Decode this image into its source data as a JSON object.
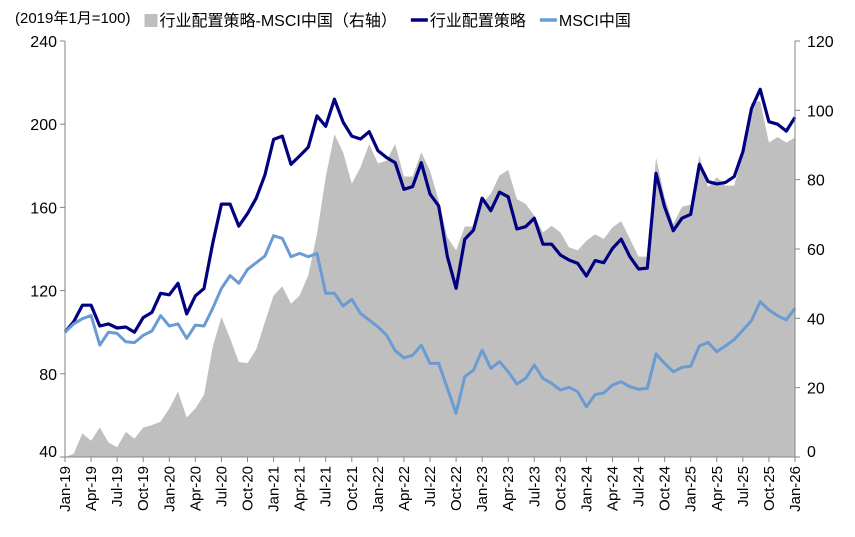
{
  "chart_data": {
    "type": "line+area",
    "unit_note": "(2019年1月=100)",
    "legend_position": "top",
    "grid": false,
    "legend": [
      {
        "key": "diff",
        "label": "行业配置策略-MSCI中国（右轴）",
        "swatch": "square"
      },
      {
        "key": "strategy",
        "label": "行业配置策略",
        "swatch": "line"
      },
      {
        "key": "msci",
        "label": "MSCI中国",
        "swatch": "line"
      }
    ],
    "colors": {
      "diff": "#bfbfbf",
      "strategy": "#000080",
      "msci": "#6a9bd2",
      "axis": "#868686"
    },
    "left_axis": {
      "range": [
        40,
        240
      ],
      "ticks": [
        40,
        80,
        120,
        160,
        200,
        240
      ]
    },
    "right_axis": {
      "range": [
        0,
        120
      ],
      "ticks": [
        0,
        20,
        40,
        60,
        80,
        100,
        120
      ]
    },
    "x_start": "Jan-19",
    "x_end": "Jan-26",
    "x_tick_labels": [
      "Jan-19",
      "Apr-19",
      "Jul-19",
      "Oct-19",
      "Jan-20",
      "Apr-20",
      "Jul-20",
      "Oct-20",
      "Jan-21",
      "Apr-21",
      "Jul-21",
      "Oct-21",
      "Jan-22",
      "Apr-22",
      "Jul-22",
      "Oct-22",
      "Jan-23",
      "Apr-23",
      "Jul-23",
      "Oct-23",
      "Jan-24",
      "Apr-24",
      "Jul-24",
      "Oct-24",
      "Jan-25",
      "Apr-25",
      "Jul-25",
      "Oct-25",
      "Jan-26"
    ],
    "series": [
      {
        "key": "strategy",
        "name": "行业配置策略",
        "axis": "left",
        "kind": "line",
        "values": [
          100,
          105,
          113,
          113,
          103,
          104,
          102,
          102.5,
          100,
          107,
          109.5,
          118.7,
          118,
          123.5,
          108.8,
          117.5,
          121,
          142.7,
          161.6,
          161.6,
          151,
          157,
          164.4,
          175.6,
          192.7,
          194.3,
          180.7,
          184.7,
          189,
          204,
          199,
          212,
          201,
          194.3,
          192.9,
          196.4,
          187.3,
          184,
          181.5,
          168.7,
          170,
          181.5,
          166.4,
          160.7,
          136.3,
          121.1,
          144.7,
          149.1,
          164.4,
          158.4,
          167.3,
          165.1,
          149.6,
          150.7,
          154.8,
          142.3,
          142.3,
          137.1,
          134.7,
          133.1,
          127,
          134.4,
          133.4,
          140.3,
          144.7,
          136.3,
          130.4,
          130.8,
          176.4,
          160.3,
          148.8,
          154.8,
          156.7,
          180.7,
          172.4,
          171.3,
          172,
          174.8,
          186.8,
          207.6,
          216.8,
          201.2,
          200,
          196.7,
          203.3
        ]
      },
      {
        "key": "msci",
        "name": "MSCI中国",
        "axis": "left",
        "kind": "line",
        "values": [
          100,
          104,
          106.5,
          108,
          93.8,
          100,
          99.4,
          95.4,
          95,
          98.5,
          100.6,
          108,
          103,
          104,
          97,
          103.4,
          103,
          111.5,
          121,
          127.2,
          123.5,
          130.2,
          133.4,
          136.6,
          146.4,
          145.1,
          136.3,
          137.9,
          136.3,
          137.9,
          118.7,
          118.7,
          112.6,
          115.8,
          109,
          105.8,
          102.6,
          98.6,
          91.1,
          87.7,
          88.9,
          93.8,
          85,
          85,
          73,
          61,
          78.6,
          81.8,
          91.4,
          82.6,
          85.8,
          81,
          75.1,
          77.8,
          84.2,
          77.8,
          75.4,
          72.2,
          73.5,
          71.4,
          64.2,
          70,
          70.8,
          74.6,
          76.2,
          73.8,
          72.6,
          73,
          89.5,
          85,
          81,
          83.1,
          83.7,
          93.4,
          95.1,
          90.6,
          93.4,
          96.5,
          101,
          105.6,
          114.7,
          110.7,
          107.9,
          105.9,
          111.5
        ]
      },
      {
        "key": "diff",
        "name": "行业配置策略-MSCI中国（右轴）",
        "axis": "right",
        "kind": "area",
        "values": [
          0,
          0.9,
          6.8,
          4.7,
          8.5,
          4.2,
          2.8,
          7.2,
          5.3,
          8.5,
          9.2,
          10.2,
          14,
          18.8,
          11.4,
          14,
          17.9,
          31.7,
          40.4,
          34.2,
          27.4,
          27.1,
          31,
          38.9,
          46.6,
          49.2,
          44.2,
          46.6,
          52.4,
          64.4,
          80.7,
          93.1,
          87.9,
          78.8,
          83.6,
          90.3,
          84.7,
          85.5,
          90.3,
          80.9,
          80.9,
          87.9,
          82.6,
          74,
          63.4,
          59.6,
          66.5,
          66.5,
          73.2,
          75.9,
          81.2,
          82.8,
          74.4,
          73,
          69.6,
          64.8,
          66.7,
          64.8,
          60.5,
          59.6,
          62.4,
          64.2,
          62.9,
          66.3,
          68,
          62.9,
          57.8,
          57.8,
          86.4,
          74.9,
          67.2,
          72.2,
          72.8,
          86.9,
          77.8,
          80.7,
          78.3,
          78.3,
          87.9,
          102.2,
          102.7,
          90.7,
          92.3,
          90.7,
          92.2
        ]
      }
    ]
  }
}
